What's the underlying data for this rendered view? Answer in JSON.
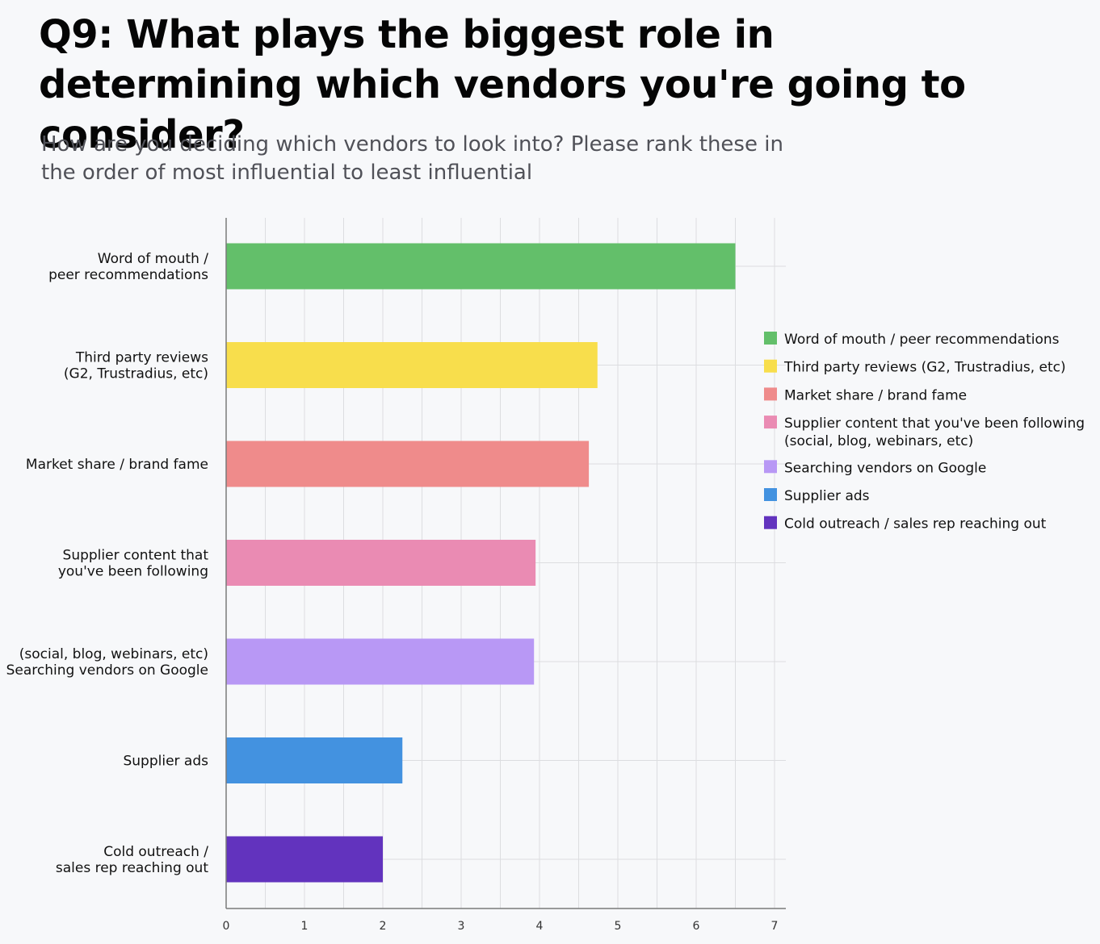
{
  "chart_data": {
    "type": "bar",
    "orientation": "horizontal",
    "title": "Q9: What plays the biggest role in determining which vendors you're going to consider?",
    "subtitle": "How are you deciding which vendors to look into? Please rank these in the order of most influential to least influential",
    "y_tick_labels": [
      [
        "Word of mouth /",
        "peer recommendations"
      ],
      [
        "Third party reviews",
        "(G2, Trustradius, etc)"
      ],
      [
        "Market share / brand fame"
      ],
      [
        "Supplier content that",
        "you've been following"
      ],
      [
        "(social, blog, webinars, etc)",
        "Searching vendors on Google"
      ],
      [
        "Supplier ads"
      ],
      [
        "Cold outreach /",
        "sales rep reaching out"
      ]
    ],
    "series": [
      {
        "name": "Word of mouth / peer recommendations",
        "value": 6.5,
        "color": "#63bf6a"
      },
      {
        "name": "Third party reviews (G2, Trustradius, etc)",
        "value": 4.74,
        "color": "#f8de4c"
      },
      {
        "name": "Market share / brand fame",
        "value": 4.63,
        "color": "#ef8b8b"
      },
      {
        "name": "Supplier content that you've been following (social, blog, webinars, etc)",
        "value": 3.95,
        "color": "#ea8bb3"
      },
      {
        "name": "Searching vendors on Google",
        "value": 3.93,
        "color": "#b898f5"
      },
      {
        "name": "Supplier ads",
        "value": 2.25,
        "color": "#4392e0"
      },
      {
        "name": "Cold outreach / sales rep reaching out",
        "value": 2.0,
        "color": "#6233be"
      }
    ],
    "legend_lines": [
      [
        "Word of mouth / peer recommendations"
      ],
      [
        "Third party reviews (G2, Trustradius, etc)"
      ],
      [
        "Market share / brand fame"
      ],
      [
        "Supplier content that you've been following",
        "(social, blog, webinars, etc)"
      ],
      [
        "Searching vendors on Google"
      ],
      [
        "Supplier ads"
      ],
      [
        "Cold outreach / sales rep reaching out"
      ]
    ],
    "x_ticks": [
      "0",
      "1",
      "2",
      "3",
      "4",
      "5",
      "6",
      "7"
    ],
    "xlim": [
      0,
      7
    ],
    "xlabel": "",
    "ylabel": "",
    "grid": true,
    "legend_position": "right"
  }
}
